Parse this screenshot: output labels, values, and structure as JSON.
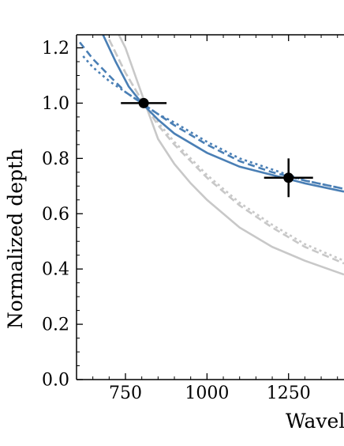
{
  "chart_data": {
    "type": "line",
    "title": "",
    "xlabel": "Wavel",
    "ylabel": "Normalized depth",
    "xlim": [
      600,
      1420
    ],
    "ylim": [
      0.0,
      1.25
    ],
    "grid": false,
    "x_ticks": [
      {
        "value": 750,
        "label": "750"
      },
      {
        "value": 1000,
        "label": "1000"
      },
      {
        "value": 1250,
        "label": "1250"
      }
    ],
    "y_ticks": [
      {
        "value": 0.0,
        "label": "0.0"
      },
      {
        "value": 0.2,
        "label": "0.2"
      },
      {
        "value": 0.4,
        "label": "0.4"
      },
      {
        "value": 0.6,
        "label": "0.6"
      },
      {
        "value": 0.8,
        "label": "0.8"
      },
      {
        "value": 1.0,
        "label": "1.0"
      },
      {
        "value": 1.2,
        "label": "1.2"
      }
    ],
    "series": [
      {
        "color": "#c8c8c8",
        "style": "solid",
        "x": [
          720,
          750,
          780,
          810,
          850,
          900,
          950,
          1000,
          1100,
          1200,
          1300,
          1420
        ],
        "y": [
          1.27,
          1.2,
          1.1,
          1.0,
          0.87,
          0.78,
          0.71,
          0.65,
          0.55,
          0.48,
          0.43,
          0.38
        ]
      },
      {
        "color": "#c8c8c8",
        "style": "dashed",
        "x": [
          700,
          750,
          800,
          850,
          900,
          1000,
          1100,
          1200,
          1300,
          1420
        ],
        "y": [
          1.23,
          1.11,
          1.01,
          0.92,
          0.85,
          0.73,
          0.63,
          0.55,
          0.48,
          0.42
        ]
      },
      {
        "color": "#c8c8c8",
        "style": "dotted",
        "x": [
          700,
          750,
          800,
          850,
          900,
          1000,
          1100,
          1200,
          1300,
          1420
        ],
        "y": [
          1.23,
          1.11,
          1.01,
          0.93,
          0.86,
          0.74,
          0.64,
          0.56,
          0.49,
          0.43
        ]
      },
      {
        "color": "#4a7fb5",
        "style": "solid",
        "x": [
          680,
          720,
          760,
          800,
          850,
          900,
          1000,
          1100,
          1200,
          1300,
          1420
        ],
        "y": [
          1.25,
          1.15,
          1.06,
          1.0,
          0.94,
          0.89,
          0.82,
          0.77,
          0.74,
          0.71,
          0.68
        ]
      },
      {
        "color": "#4a7fb5",
        "style": "dashed",
        "x": [
          610,
          650,
          700,
          750,
          800,
          850,
          900,
          1000,
          1100,
          1200,
          1300,
          1420
        ],
        "y": [
          1.22,
          1.16,
          1.1,
          1.04,
          1.0,
          0.96,
          0.92,
          0.85,
          0.79,
          0.75,
          0.72,
          0.69
        ]
      },
      {
        "color": "#4a7fb5",
        "style": "dotted",
        "x": [
          620,
          650,
          700,
          750,
          800,
          850,
          900,
          1000,
          1100,
          1200,
          1300,
          1420
        ],
        "y": [
          1.17,
          1.13,
          1.08,
          1.04,
          1.0,
          0.96,
          0.93,
          0.86,
          0.8,
          0.76,
          0.72,
          0.69
        ]
      }
    ],
    "points": [
      {
        "x": 806,
        "y": 1.0,
        "xerr": 70,
        "yerr": 0.0
      },
      {
        "x": 1250,
        "y": 0.73,
        "xerr": 75,
        "yerr": 0.07
      }
    ]
  }
}
